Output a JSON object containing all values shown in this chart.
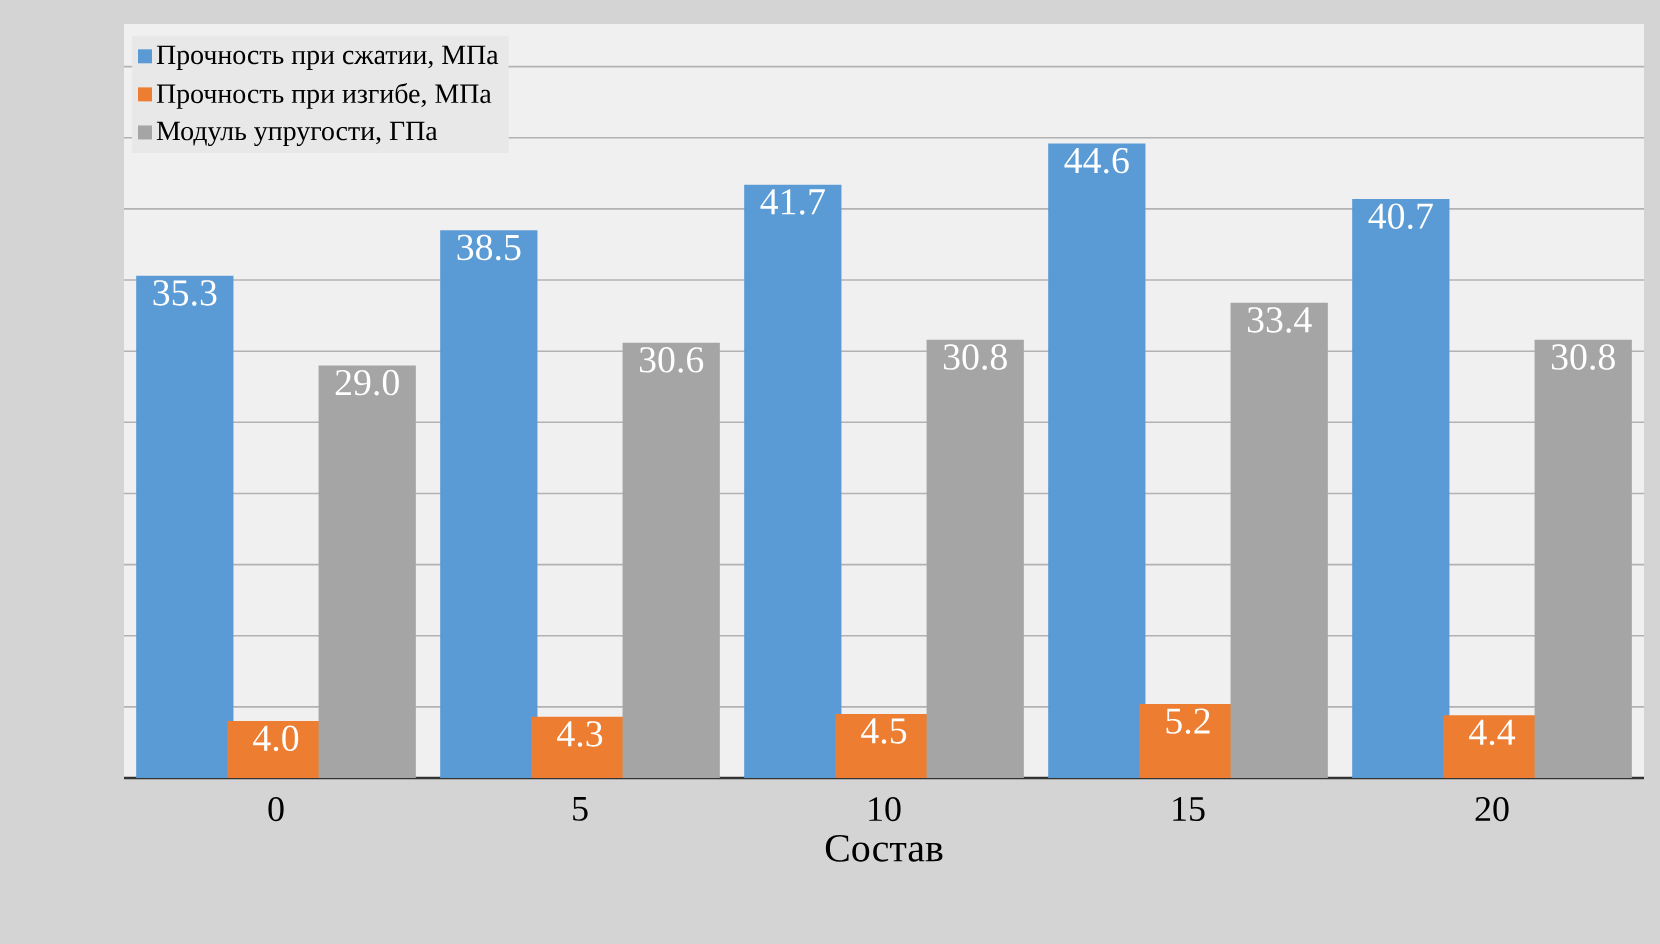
{
  "chart_data": {
    "type": "bar",
    "xlabel": "Состав",
    "categories": [
      "0",
      "5",
      "10",
      "15",
      "20"
    ],
    "series": [
      {
        "name": "Прочность при сжатии, МПа",
        "color": "#5b9bd5",
        "values": [
          35.3,
          38.5,
          41.7,
          44.6,
          40.7
        ],
        "value_labels": [
          "35.3",
          "38.5",
          "41.7",
          "44.6",
          "40.7"
        ]
      },
      {
        "name": "Прочность при изгибе, МПа",
        "color": "#ed7d31",
        "values": [
          4.0,
          4.3,
          4.5,
          5.2,
          4.4
        ],
        "value_labels": [
          "4.0",
          "4.3",
          "4.5",
          "5.2",
          "4.4"
        ]
      },
      {
        "name": "Модуль упругости, ГПа",
        "color": "#a5a5a5",
        "values": [
          29.0,
          30.6,
          30.8,
          33.4,
          30.8
        ],
        "value_labels": [
          "29.0",
          "30.6",
          "30.8",
          "33.4",
          "30.8"
        ]
      }
    ],
    "ylim": [
      0,
      53
    ],
    "tick_labels": "x",
    "grid": "y",
    "legend": "top left"
  }
}
